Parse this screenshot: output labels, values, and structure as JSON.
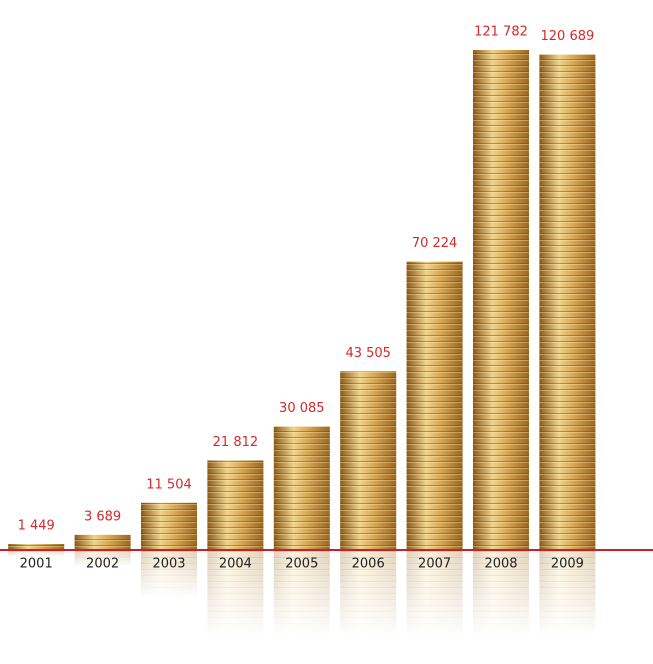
{
  "chart_data": {
    "type": "bar",
    "categories": [
      "2001",
      "2002",
      "2003",
      "2004",
      "2005",
      "2006",
      "2007",
      "2008",
      "2009"
    ],
    "values": [
      1449,
      3689,
      11504,
      21812,
      30085,
      43505,
      70224,
      121782,
      120689
    ],
    "value_labels": [
      "1 449",
      "3 689",
      "11 504",
      "21 812",
      "30 085",
      "43 505",
      "70 224",
      "121 782",
      "120 689"
    ],
    "color": "#c9963f",
    "baseline_color": "#c8202a"
  }
}
